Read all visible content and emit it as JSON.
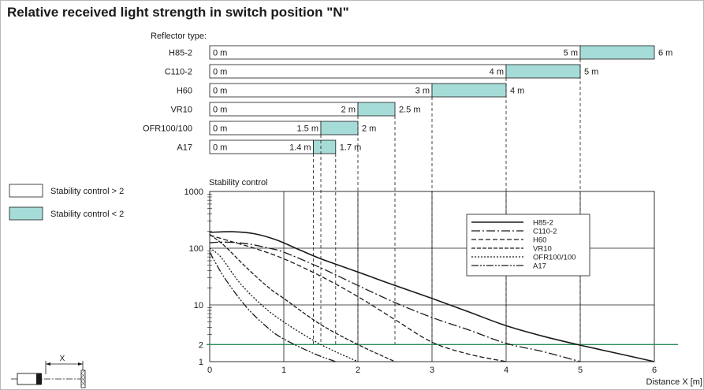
{
  "title": "Relative received light strength in switch position \"N\"",
  "reflector_label": "Reflector type:",
  "colors": {
    "fill": "#a6dcd8",
    "line": "#1a1a1a",
    "threshold": "#2e8b57"
  },
  "legend_boxes": [
    {
      "label": "Stability control > 2",
      "color": "#ffffff"
    },
    {
      "label": "Stability control < 2",
      "color": "#a6dcd8"
    }
  ],
  "range_bars": [
    {
      "name": "H85-2",
      "start_label": "0 m",
      "stable": 5,
      "stable_label": "5 m",
      "max": 6,
      "max_label": "6 m"
    },
    {
      "name": "C110-2",
      "start_label": "0 m",
      "stable": 4,
      "stable_label": "4 m",
      "max": 5,
      "max_label": "5 m"
    },
    {
      "name": "H60",
      "start_label": "0 m",
      "stable": 3,
      "stable_label": "3 m",
      "max": 4,
      "max_label": "4 m"
    },
    {
      "name": "VR10",
      "start_label": "0 m",
      "stable": 2,
      "stable_label": "2 m",
      "max": 2.5,
      "max_label": "2.5 m"
    },
    {
      "name": "OFR100/100",
      "start_label": "0 m",
      "stable": 1.5,
      "stable_label": "1.5 m",
      "max": 2,
      "max_label": "2 m"
    },
    {
      "name": "A17",
      "start_label": "0 m",
      "stable": 1.4,
      "stable_label": "1.4 m",
      "max": 1.7,
      "max_label": "1.7 m"
    }
  ],
  "chart_data": {
    "type": "line",
    "ylabel": "Stability control",
    "xlabel": "Distance X [m]",
    "yscale": "log",
    "xlim": [
      0,
      6
    ],
    "ylim": [
      1,
      1000
    ],
    "x_ticks": [
      "0",
      "1",
      "2",
      "3",
      "4",
      "5",
      "6"
    ],
    "y_ticks": [
      "1",
      "2",
      "10",
      "100",
      "1000"
    ],
    "threshold": 2,
    "legend_position": "top-right",
    "series": [
      {
        "name": "H85-2",
        "dash": "",
        "points": [
          [
            0,
            190
          ],
          [
            0.3,
            195
          ],
          [
            0.6,
            180
          ],
          [
            0.9,
            140
          ],
          [
            1.2,
            95
          ],
          [
            1.5,
            65
          ],
          [
            2,
            38
          ],
          [
            2.5,
            22
          ],
          [
            3,
            13
          ],
          [
            3.5,
            7.5
          ],
          [
            4,
            4.3
          ],
          [
            4.5,
            2.8
          ],
          [
            5,
            1.95
          ],
          [
            5.5,
            1.4
          ],
          [
            6,
            1
          ]
        ]
      },
      {
        "name": "C110-2",
        "dash": "11,3,2,3",
        "points": [
          [
            0,
            125
          ],
          [
            0.2,
            128
          ],
          [
            0.5,
            120
          ],
          [
            0.8,
            100
          ],
          [
            1,
            85
          ],
          [
            1.5,
            45
          ],
          [
            2,
            22
          ],
          [
            2.5,
            11
          ],
          [
            3,
            6
          ],
          [
            3.5,
            3.6
          ],
          [
            4,
            2.1
          ],
          [
            4.5,
            1.5
          ],
          [
            5,
            1
          ]
        ]
      },
      {
        "name": "H60",
        "dash": "6,3",
        "points": [
          [
            0,
            170
          ],
          [
            0.3,
            130
          ],
          [
            0.6,
            100
          ],
          [
            1,
            65
          ],
          [
            1.5,
            32
          ],
          [
            2,
            14
          ],
          [
            2.5,
            5.5
          ],
          [
            3,
            2.2
          ],
          [
            3.5,
            1.35
          ],
          [
            4,
            1
          ]
        ]
      },
      {
        "name": "VR10",
        "dash": "5,2",
        "points": [
          [
            0,
            175
          ],
          [
            0.2,
            110
          ],
          [
            0.5,
            45
          ],
          [
            0.8,
            20
          ],
          [
            1,
            13
          ],
          [
            1.5,
            4.5
          ],
          [
            2,
            2
          ],
          [
            2.5,
            1
          ]
        ]
      },
      {
        "name": "OFR100/100",
        "dash": "2,2",
        "points": [
          [
            0,
            100
          ],
          [
            0.15,
            70
          ],
          [
            0.4,
            25
          ],
          [
            0.7,
            10
          ],
          [
            1,
            5
          ],
          [
            1.5,
            2
          ],
          [
            2,
            1
          ]
        ]
      },
      {
        "name": "A17",
        "dash": "9,2,2,2,2,2",
        "points": [
          [
            0,
            85
          ],
          [
            0.2,
            30
          ],
          [
            0.5,
            9
          ],
          [
            0.8,
            3.8
          ],
          [
            1,
            2.5
          ],
          [
            1.4,
            1.4
          ],
          [
            1.7,
            1
          ]
        ]
      }
    ]
  }
}
